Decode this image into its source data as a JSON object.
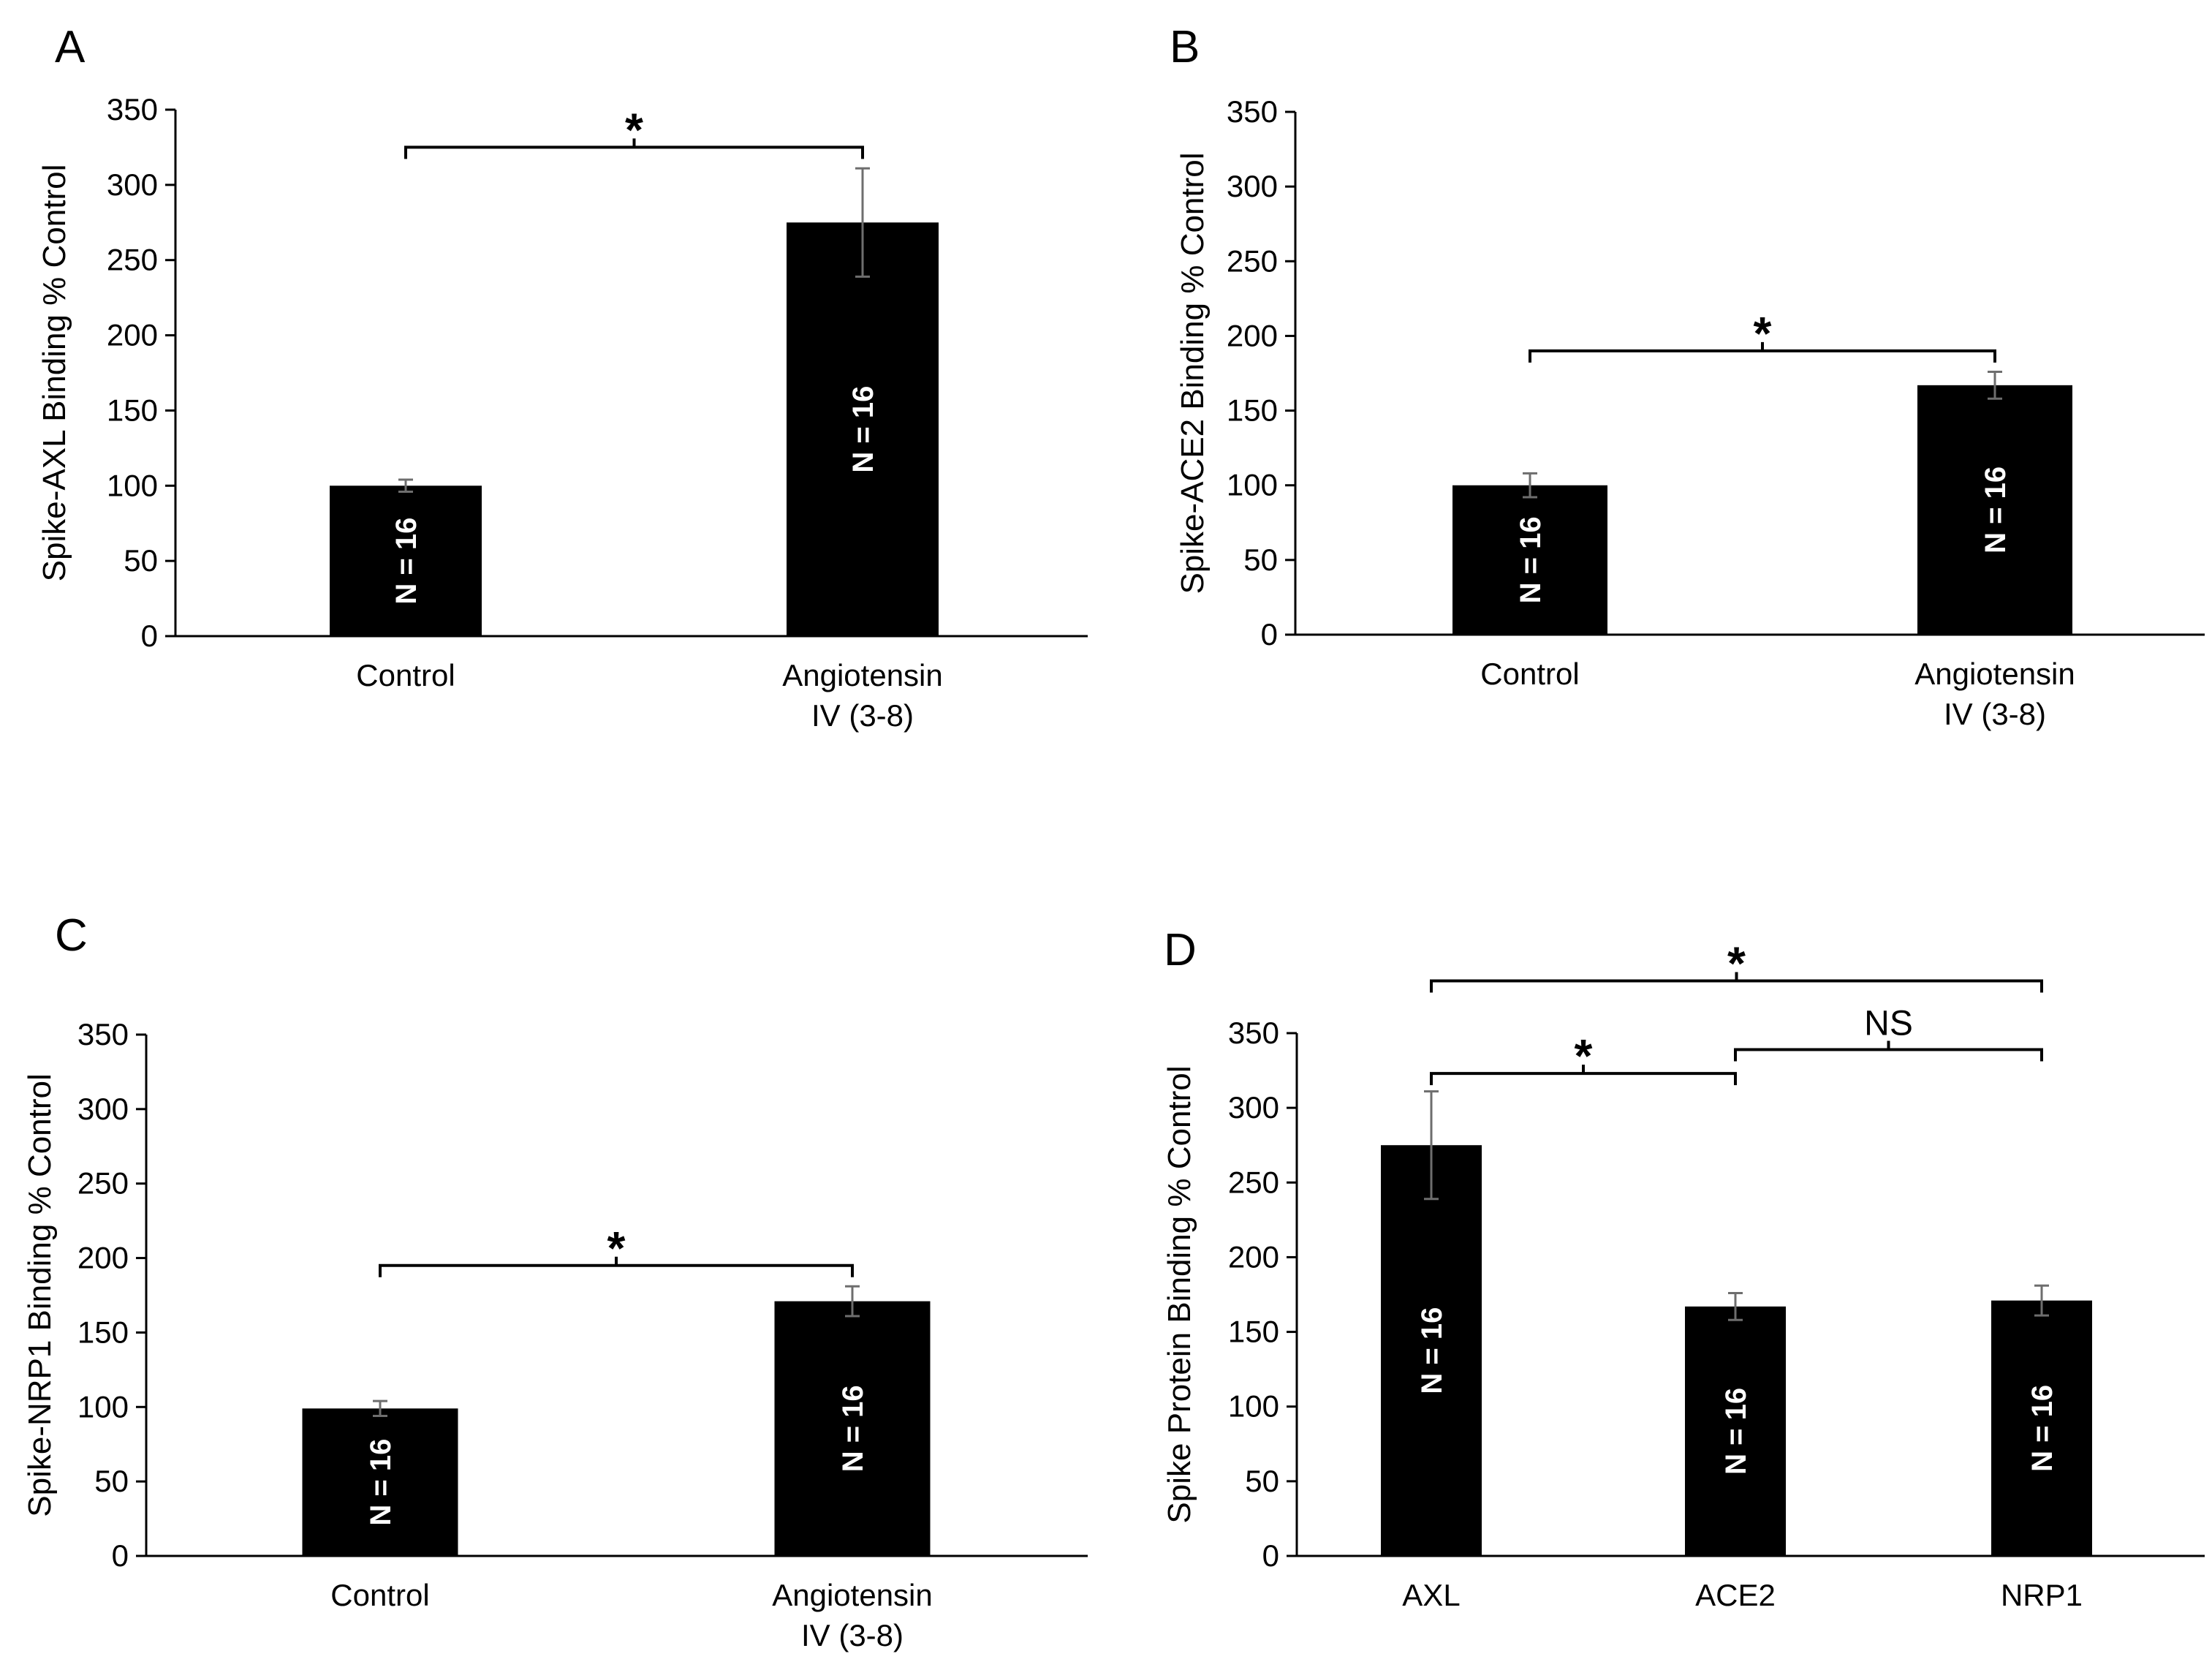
{
  "chart_data": [
    {
      "type": "bar",
      "panel_label": "A",
      "title": "",
      "xlabel": "",
      "ylabel": "Spike-AXL Binding % Control",
      "ylim": [
        0,
        350
      ],
      "yticks": [
        0,
        50,
        100,
        150,
        200,
        250,
        300,
        350
      ],
      "categories": [
        [
          "Control"
        ],
        [
          "Angiotensin",
          "IV (3-8)"
        ]
      ],
      "values": [
        100,
        275
      ],
      "errors": [
        4,
        36
      ],
      "bar_labels": [
        "N = 16",
        "N = 16"
      ],
      "significance": [
        {
          "from": 0,
          "to": 1,
          "label": "*",
          "y": 325
        }
      ],
      "bar_color": "#000000"
    },
    {
      "type": "bar",
      "panel_label": "B",
      "title": "",
      "xlabel": "",
      "ylabel": "Spike-ACE2 Binding % Control",
      "ylim": [
        0,
        350
      ],
      "yticks": [
        0,
        50,
        100,
        150,
        200,
        250,
        300,
        350
      ],
      "categories": [
        [
          "Control"
        ],
        [
          "Angiotensin",
          "IV (3-8)"
        ]
      ],
      "values": [
        100,
        167
      ],
      "errors": [
        8,
        9
      ],
      "bar_labels": [
        "N = 16",
        "N = 16"
      ],
      "significance": [
        {
          "from": 0,
          "to": 1,
          "label": "*",
          "y": 190
        }
      ],
      "bar_color": "#000000"
    },
    {
      "type": "bar",
      "panel_label": "C",
      "title": "",
      "xlabel": "",
      "ylabel": "Spike-NRP1 Binding % Control",
      "ylim": [
        0,
        350
      ],
      "yticks": [
        0,
        50,
        100,
        150,
        200,
        250,
        300,
        350
      ],
      "categories": [
        [
          "Control"
        ],
        [
          "Angiotensin",
          "IV (3-8)"
        ]
      ],
      "values": [
        99,
        171
      ],
      "errors": [
        5,
        10
      ],
      "bar_labels": [
        "N = 16",
        "N = 16"
      ],
      "significance": [
        {
          "from": 0,
          "to": 1,
          "label": "*",
          "y": 195
        }
      ],
      "bar_color": "#000000"
    },
    {
      "type": "bar",
      "panel_label": "D",
      "title": "",
      "xlabel": "",
      "ylabel": "Spike Protein Binding % Control",
      "ylim": [
        0,
        350
      ],
      "yticks": [
        0,
        50,
        100,
        150,
        200,
        250,
        300,
        350
      ],
      "categories": [
        [
          "AXL"
        ],
        [
          "ACE2"
        ],
        [
          "NRP1"
        ]
      ],
      "values": [
        275,
        167,
        171
      ],
      "errors": [
        36,
        9,
        10
      ],
      "bar_labels": [
        "N = 16",
        "N = 16",
        "N = 16"
      ],
      "significance": [
        {
          "from": 0,
          "to": 1,
          "label": "*",
          "y": 323
        },
        {
          "from": 1,
          "to": 2,
          "label": "NS",
          "y": 339
        },
        {
          "from": 0,
          "to": 2,
          "label": "*",
          "y": 385
        }
      ],
      "bar_color": "#000000"
    }
  ]
}
